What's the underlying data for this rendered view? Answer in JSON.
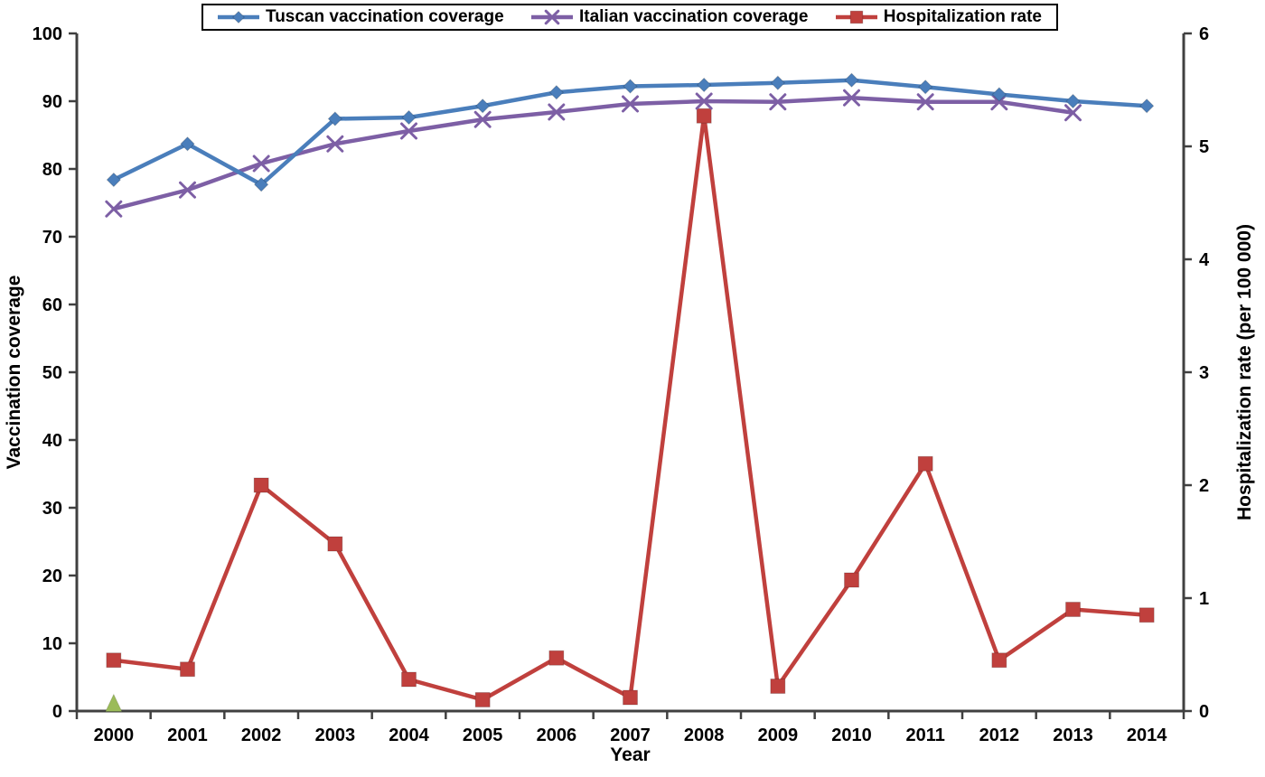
{
  "chart_data": {
    "type": "line",
    "title": "",
    "xlabel": "Year",
    "x": [
      2000,
      2001,
      2002,
      2003,
      2004,
      2005,
      2006,
      2007,
      2008,
      2009,
      2010,
      2011,
      2012,
      2013,
      2014
    ],
    "left_axis": {
      "label": "Vaccination coverage",
      "min": 0,
      "max": 100,
      "step": 10,
      "ticks": [
        0,
        10,
        20,
        30,
        40,
        50,
        60,
        70,
        80,
        90,
        100
      ]
    },
    "right_axis": {
      "label": "Hospitalization rate (per 100 000)",
      "min": 0,
      "max": 6,
      "step": 1,
      "ticks": [
        0,
        1,
        2,
        3,
        4,
        5,
        6
      ]
    },
    "legend_position": "top",
    "grid": false,
    "series": [
      {
        "name": "Tuscan vaccination coverage",
        "axis": "left",
        "color": "#4a7ebb",
        "marker": "diamond",
        "values": [
          78.4,
          83.7,
          77.7,
          87.4,
          87.6,
          89.3,
          91.3,
          92.2,
          92.4,
          92.7,
          93.1,
          92.1,
          91.0,
          90.0,
          89.3
        ]
      },
      {
        "name": "Italian vaccination coverage",
        "axis": "left",
        "color": "#7d5fa5",
        "marker": "x",
        "values": [
          74.1,
          76.9,
          80.8,
          83.7,
          85.6,
          87.3,
          88.4,
          89.6,
          90.0,
          89.9,
          90.5,
          89.9,
          89.9,
          88.3,
          null
        ]
      },
      {
        "name": "Hospitalization rate",
        "axis": "right",
        "color": "#c0403d",
        "marker": "square",
        "values": [
          0.45,
          0.37,
          2.0,
          1.48,
          0.28,
          0.1,
          0.47,
          0.12,
          5.27,
          0.22,
          1.16,
          2.19,
          0.45,
          0.9,
          0.85
        ]
      }
    ],
    "event_marker": {
      "x": 2000,
      "axis": "left",
      "value": 1,
      "shape": "triangle",
      "color": "#9bbb59"
    },
    "axis_color": "#404040"
  }
}
